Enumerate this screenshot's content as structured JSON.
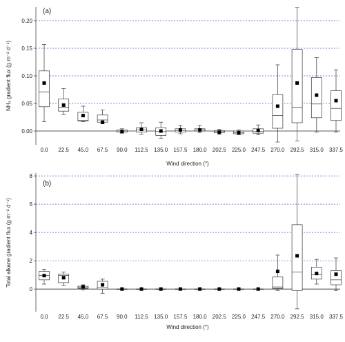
{
  "chart_data": [
    {
      "type": "box",
      "panel_label": "(a)",
      "xlabel": "Wind direction (°)",
      "ylabel": "NH₃ gradient flux (g m⁻² d⁻¹)",
      "ylim": [
        -0.025,
        0.225
      ],
      "yticks": [
        "0.00",
        "0.05",
        "0.10",
        "0.15",
        "0.20"
      ],
      "ytick_values": [
        0,
        0.05,
        0.1,
        0.15,
        0.2
      ],
      "grid": "horizontal dotted at 0.05 intervals",
      "categories": [
        "0.0",
        "22.5",
        "45.0",
        "67.5",
        "90.0",
        "112.5",
        "135.0",
        "157.5",
        "180.0",
        "202.5",
        "225.0",
        "247.5",
        "270.0",
        "292.5",
        "315.0",
        "337.5"
      ],
      "boxes": [
        {
          "whislo": 0.017,
          "q1": 0.044,
          "median": 0.071,
          "q3": 0.109,
          "whishi": 0.157,
          "mean": 0.087
        },
        {
          "whislo": 0.03,
          "q1": 0.036,
          "median": 0.043,
          "q3": 0.058,
          "whishi": 0.077,
          "mean": 0.047
        },
        {
          "whislo": 0.017,
          "q1": 0.018,
          "median": 0.019,
          "q3": 0.034,
          "whishi": 0.045,
          "mean": 0.028
        },
        {
          "whislo": 0.013,
          "q1": 0.016,
          "median": 0.02,
          "q3": 0.029,
          "whishi": 0.038,
          "mean": 0.016
        },
        {
          "whislo": -0.004,
          "q1": -0.002,
          "median": 0.0,
          "q3": 0.002,
          "whishi": 0.004,
          "mean": -0.001
        },
        {
          "whislo": -0.006,
          "q1": -0.002,
          "median": 0.002,
          "q3": 0.006,
          "whishi": 0.015,
          "mean": 0.003
        },
        {
          "whislo": -0.013,
          "q1": -0.008,
          "median": -0.001,
          "q3": 0.006,
          "whishi": 0.016,
          "mean": 0.0
        },
        {
          "whislo": -0.005,
          "q1": -0.002,
          "median": 0.001,
          "q3": 0.004,
          "whishi": 0.01,
          "mean": 0.002
        },
        {
          "whislo": -0.003,
          "q1": 0.0,
          "median": 0.002,
          "q3": 0.004,
          "whishi": 0.01,
          "mean": 0.002
        },
        {
          "whislo": -0.006,
          "q1": -0.003,
          "median": -0.001,
          "q3": 0.001,
          "whishi": 0.003,
          "mean": -0.002
        },
        {
          "whislo": -0.007,
          "q1": -0.005,
          "median": -0.003,
          "q3": 0.0,
          "whishi": 0.002,
          "mean": -0.003
        },
        {
          "whislo": -0.007,
          "q1": -0.004,
          "median": -0.001,
          "q3": 0.004,
          "whishi": 0.011,
          "mean": 0.001
        },
        {
          "whislo": -0.02,
          "q1": 0.005,
          "median": 0.028,
          "q3": 0.066,
          "whishi": 0.12,
          "mean": 0.045
        },
        {
          "whislo": -0.018,
          "q1": 0.015,
          "median": 0.043,
          "q3": 0.148,
          "whishi": 0.224,
          "mean": 0.087
        },
        {
          "whislo": -0.002,
          "q1": 0.024,
          "median": 0.049,
          "q3": 0.097,
          "whishi": 0.133,
          "mean": 0.065
        },
        {
          "whislo": -0.002,
          "q1": 0.019,
          "median": 0.041,
          "q3": 0.073,
          "whishi": 0.111,
          "mean": 0.055
        }
      ]
    },
    {
      "type": "box",
      "panel_label": "(b)",
      "xlabel": "Wind direction (°)",
      "ylabel": "Total alkane gradient flux (g m⁻² d⁻¹)",
      "ylim": [
        -1.6,
        8.2
      ],
      "yticks": [
        "0",
        "2",
        "4",
        "6",
        "8"
      ],
      "ytick_values": [
        0,
        2,
        4,
        6,
        8
      ],
      "grid": "horizontal dotted at 2 intervals",
      "categories": [
        "0.0",
        "22.5",
        "45.0",
        "67.5",
        "90.0",
        "112.5",
        "135.0",
        "157.5",
        "180.0",
        "202.5",
        "225.0",
        "247.5",
        "270.0",
        "292.5",
        "315.0",
        "337.5"
      ],
      "boxes": [
        {
          "whislo": 0.35,
          "q1": 0.65,
          "median": 0.95,
          "q3": 1.25,
          "whishi": 1.4,
          "mean": 0.95
        },
        {
          "whislo": 0.25,
          "q1": 0.45,
          "median": 0.95,
          "q3": 1.05,
          "whishi": 1.2,
          "mean": 0.8
        },
        {
          "whislo": -0.05,
          "q1": 0.05,
          "median": 0.1,
          "q3": 0.2,
          "whishi": 0.3,
          "mean": 0.15
        },
        {
          "whislo": -0.3,
          "q1": 0.0,
          "median": 0.1,
          "q3": 0.55,
          "whishi": 0.7,
          "mean": 0.3
        },
        {
          "whislo": 0.0,
          "q1": 0.0,
          "median": 0.0,
          "q3": 0.0,
          "whishi": 0.0,
          "mean": 0.0
        },
        {
          "whislo": 0.0,
          "q1": 0.0,
          "median": 0.0,
          "q3": 0.0,
          "whishi": 0.0,
          "mean": 0.0
        },
        {
          "whislo": 0.0,
          "q1": 0.0,
          "median": 0.0,
          "q3": 0.0,
          "whishi": 0.0,
          "mean": 0.0
        },
        {
          "whislo": 0.0,
          "q1": 0.0,
          "median": 0.0,
          "q3": 0.0,
          "whishi": 0.0,
          "mean": 0.0
        },
        {
          "whislo": 0.0,
          "q1": 0.0,
          "median": 0.0,
          "q3": 0.0,
          "whishi": 0.0,
          "mean": 0.0
        },
        {
          "whislo": 0.0,
          "q1": 0.0,
          "median": 0.0,
          "q3": 0.0,
          "whishi": 0.0,
          "mean": 0.0
        },
        {
          "whislo": 0.0,
          "q1": 0.0,
          "median": 0.0,
          "q3": 0.0,
          "whishi": 0.0,
          "mean": 0.0
        },
        {
          "whislo": 0.0,
          "q1": 0.0,
          "median": 0.0,
          "q3": 0.0,
          "whishi": 0.0,
          "mean": 0.0
        },
        {
          "whislo": -0.1,
          "q1": 0.05,
          "median": 0.15,
          "q3": 0.85,
          "whishi": 2.4,
          "mean": 1.25
        },
        {
          "whislo": -1.4,
          "q1": -0.1,
          "median": 1.2,
          "q3": 4.55,
          "whishi": 8.1,
          "mean": 2.35
        },
        {
          "whislo": 0.35,
          "q1": 0.7,
          "median": 1.0,
          "q3": 1.55,
          "whishi": 2.1,
          "mean": 1.1
        },
        {
          "whislo": -0.1,
          "q1": 0.3,
          "median": 0.65,
          "q3": 1.3,
          "whishi": 2.2,
          "mean": 1.05
        }
      ]
    }
  ]
}
